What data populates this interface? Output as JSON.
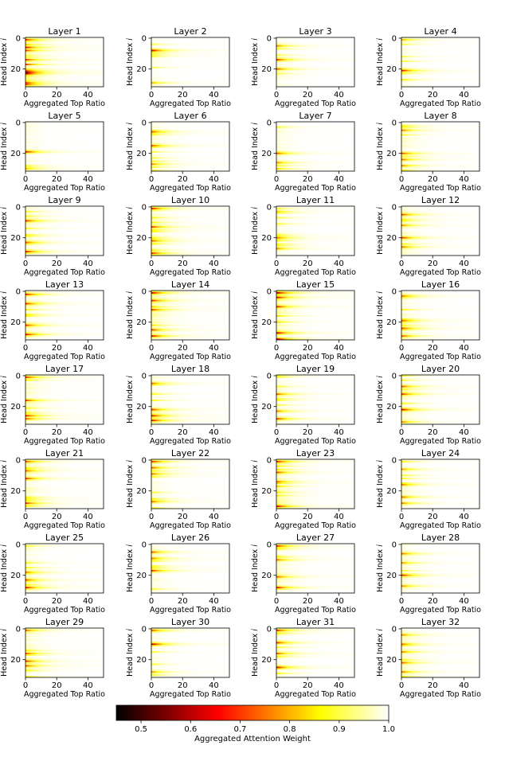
{
  "figure": {
    "title_prefix": "Layer"
  },
  "chart_data": {
    "type": "heatmap",
    "panel_count": 32,
    "panel_titles": [
      "Layer 1",
      "Layer 2",
      "Layer 3",
      "Layer 4",
      "Layer 5",
      "Layer 6",
      "Layer 7",
      "Layer 8",
      "Layer 9",
      "Layer 10",
      "Layer 11",
      "Layer 12",
      "Layer 13",
      "Layer 14",
      "Layer 15",
      "Layer 16",
      "Layer 17",
      "Layer 18",
      "Layer 19",
      "Layer 20",
      "Layer 21",
      "Layer 22",
      "Layer 23",
      "Layer 24",
      "Layer 25",
      "Layer 26",
      "Layer 27",
      "Layer 28",
      "Layer 29",
      "Layer 30",
      "Layer 31",
      "Layer 32"
    ],
    "xlabel": "Aggregated Top Ratio",
    "ylabel": "Head Index i",
    "xlim": [
      0,
      50
    ],
    "ylim": [
      0,
      32
    ],
    "xticks": [
      0,
      20,
      40
    ],
    "yticks": [
      0,
      20
    ],
    "colormap": "hot",
    "colorbar": {
      "label": "Aggregated Attention Weight",
      "range": [
        0.45,
        1.0
      ],
      "ticks": [
        0.5,
        0.6,
        0.7,
        0.8,
        0.9,
        1.0
      ],
      "tick_labels": [
        "0.5",
        "0.6",
        "0.7",
        "0.8",
        "0.9",
        "1.0"
      ]
    },
    "layers": [
      {
        "layer": 1,
        "base": 0.76,
        "dark": [
          [
            22,
            0.5
          ],
          [
            23,
            0.55
          ],
          [
            6,
            0.62
          ],
          [
            14,
            0.66
          ],
          [
            29,
            0.66
          ]
        ]
      },
      {
        "layer": 2,
        "base": 0.97,
        "dark": [
          [
            8,
            0.6
          ],
          [
            29,
            0.78
          ]
        ]
      },
      {
        "layer": 3,
        "base": 0.96,
        "dark": [
          [
            5,
            0.74
          ],
          [
            14,
            0.66
          ],
          [
            20,
            0.7
          ]
        ]
      },
      {
        "layer": 4,
        "base": 0.96,
        "dark": [
          [
            21,
            0.62
          ],
          [
            1,
            0.78
          ],
          [
            27,
            0.82
          ]
        ]
      },
      {
        "layer": 5,
        "base": 0.96,
        "dark": [
          [
            19,
            0.64
          ],
          [
            30,
            0.8
          ]
        ]
      },
      {
        "layer": 6,
        "base": 0.95,
        "dark": [
          [
            6,
            0.7
          ],
          [
            15,
            0.7
          ],
          [
            27,
            0.74
          ]
        ]
      },
      {
        "layer": 7,
        "base": 0.95,
        "dark": [
          [
            20,
            0.7
          ],
          [
            26,
            0.75
          ],
          [
            30,
            0.8
          ]
        ]
      },
      {
        "layer": 8,
        "base": 0.94,
        "dark": [
          [
            5,
            0.72
          ],
          [
            20,
            0.68
          ],
          [
            24,
            0.72
          ],
          [
            28,
            0.74
          ]
        ]
      },
      {
        "layer": 9,
        "base": 0.94,
        "dark": [
          [
            9,
            0.66
          ],
          [
            23,
            0.7
          ],
          [
            29,
            0.64
          ]
        ]
      },
      {
        "layer": 10,
        "base": 0.93,
        "dark": [
          [
            1,
            0.64
          ],
          [
            13,
            0.66
          ],
          [
            22,
            0.7
          ],
          [
            30,
            0.66
          ]
        ]
      },
      {
        "layer": 11,
        "base": 0.95,
        "dark": [
          [
            3,
            0.8
          ],
          [
            20,
            0.72
          ],
          [
            27,
            0.74
          ]
        ]
      },
      {
        "layer": 12,
        "base": 0.93,
        "dark": [
          [
            5,
            0.68
          ],
          [
            12,
            0.74
          ],
          [
            20,
            0.66
          ],
          [
            26,
            0.72
          ]
        ]
      },
      {
        "layer": 13,
        "base": 0.92,
        "dark": [
          [
            2,
            0.64
          ],
          [
            8,
            0.66
          ],
          [
            22,
            0.66
          ],
          [
            28,
            0.62
          ]
        ]
      },
      {
        "layer": 14,
        "base": 0.9,
        "dark": [
          [
            1,
            0.6
          ],
          [
            6,
            0.64
          ],
          [
            12,
            0.66
          ],
          [
            25,
            0.68
          ],
          [
            29,
            0.62
          ]
        ]
      },
      {
        "layer": 15,
        "base": 0.89,
        "dark": [
          [
            1,
            0.56
          ],
          [
            4,
            0.6
          ],
          [
            10,
            0.64
          ],
          [
            27,
            0.58
          ],
          [
            31,
            0.58
          ]
        ]
      },
      {
        "layer": 16,
        "base": 0.93,
        "dark": [
          [
            3,
            0.72
          ],
          [
            19,
            0.7
          ],
          [
            24,
            0.68
          ],
          [
            29,
            0.7
          ]
        ]
      },
      {
        "layer": 17,
        "base": 0.93,
        "dark": [
          [
            1,
            0.66
          ],
          [
            16,
            0.68
          ],
          [
            26,
            0.64
          ],
          [
            28,
            0.7
          ]
        ]
      },
      {
        "layer": 18,
        "base": 0.93,
        "dark": [
          [
            5,
            0.72
          ],
          [
            22,
            0.66
          ],
          [
            26,
            0.62
          ],
          [
            29,
            0.62
          ]
        ]
      },
      {
        "layer": 19,
        "base": 0.95,
        "dark": [
          [
            12,
            0.7
          ],
          [
            23,
            0.74
          ],
          [
            28,
            0.66
          ]
        ]
      },
      {
        "layer": 20,
        "base": 0.94,
        "dark": [
          [
            7,
            0.7
          ],
          [
            12,
            0.66
          ],
          [
            22,
            0.6
          ],
          [
            30,
            0.74
          ]
        ]
      },
      {
        "layer": 21,
        "base": 0.93,
        "dark": [
          [
            1,
            0.7
          ],
          [
            7,
            0.72
          ],
          [
            12,
            0.66
          ],
          [
            28,
            0.66
          ]
        ]
      },
      {
        "layer": 22,
        "base": 0.95,
        "dark": [
          [
            1,
            0.66
          ],
          [
            5,
            0.7
          ],
          [
            9,
            0.72
          ],
          [
            27,
            0.72
          ]
        ]
      },
      {
        "layer": 23,
        "base": 0.9,
        "dark": [
          [
            1,
            0.64
          ],
          [
            8,
            0.68
          ],
          [
            14,
            0.72
          ],
          [
            30,
            0.6
          ]
        ]
      },
      {
        "layer": 24,
        "base": 0.94,
        "dark": [
          [
            6,
            0.76
          ],
          [
            16,
            0.74
          ],
          [
            24,
            0.72
          ],
          [
            28,
            0.74
          ]
        ]
      },
      {
        "layer": 25,
        "base": 0.94,
        "dark": [
          [
            18,
            0.74
          ],
          [
            23,
            0.7
          ],
          [
            28,
            0.62
          ]
        ]
      },
      {
        "layer": 26,
        "base": 0.95,
        "dark": [
          [
            5,
            0.7
          ],
          [
            9,
            0.74
          ],
          [
            17,
            0.66
          ]
        ]
      },
      {
        "layer": 27,
        "base": 0.93,
        "dark": [
          [
            1,
            0.66
          ],
          [
            10,
            0.72
          ],
          [
            21,
            0.7
          ],
          [
            28,
            0.62
          ]
        ]
      },
      {
        "layer": 28,
        "base": 0.94,
        "dark": [
          [
            6,
            0.72
          ],
          [
            12,
            0.76
          ],
          [
            20,
            0.64
          ],
          [
            27,
            0.74
          ]
        ]
      },
      {
        "layer": 29,
        "base": 0.93,
        "dark": [
          [
            1,
            0.72
          ],
          [
            16,
            0.7
          ],
          [
            21,
            0.66
          ],
          [
            24,
            0.7
          ]
        ]
      },
      {
        "layer": 30,
        "base": 0.96,
        "dark": [
          [
            1,
            0.7
          ],
          [
            10,
            0.58
          ],
          [
            28,
            0.76
          ]
        ]
      },
      {
        "layer": 31,
        "base": 0.93,
        "dark": [
          [
            1,
            0.64
          ],
          [
            9,
            0.66
          ],
          [
            16,
            0.7
          ],
          [
            25,
            0.62
          ]
        ]
      },
      {
        "layer": 32,
        "base": 0.94,
        "dark": [
          [
            4,
            0.74
          ],
          [
            10,
            0.72
          ],
          [
            15,
            0.74
          ],
          [
            22,
            0.7
          ],
          [
            28,
            0.72
          ]
        ]
      }
    ]
  }
}
